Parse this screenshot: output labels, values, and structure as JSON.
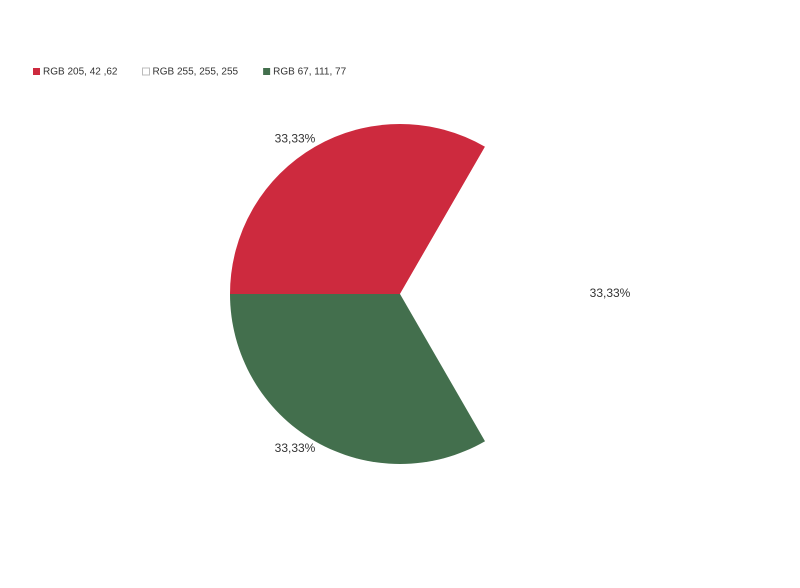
{
  "chart_data": {
    "type": "pie",
    "categories": [
      "RGB 205, 42 ,62",
      "RGB 255, 255, 255",
      "RGB 67, 111, 77"
    ],
    "values": [
      33.33,
      33.33,
      33.33
    ],
    "value_labels": [
      "33,33%",
      "33,33%",
      "33,33%"
    ],
    "colors": [
      "#cd2a3e",
      "#ffffff",
      "#436f4d"
    ],
    "legend": "top-left"
  }
}
